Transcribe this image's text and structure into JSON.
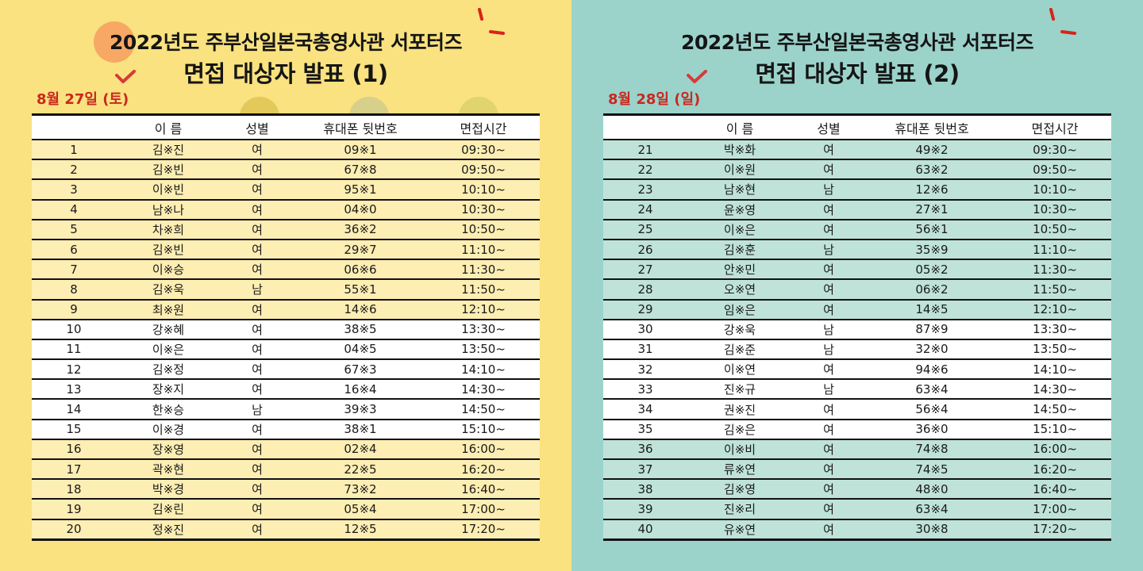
{
  "colors": {
    "left_bg": "#f9e27f",
    "right_bg": "#9bd3cb",
    "accent_red": "#c8281f"
  },
  "panels": [
    {
      "title_line1": "2022년도 주부산일본국총영사관 서포터즈",
      "title_line2": "면접 대상자 발표 (1)",
      "date": "8월 27일 (토)",
      "headers": [
        "",
        "이 름",
        "성별",
        "휴대폰 뒷번호",
        "면접시간"
      ],
      "rows": [
        [
          "1",
          "김※진",
          "여",
          "09※1",
          "09:30~"
        ],
        [
          "2",
          "김※빈",
          "여",
          "67※8",
          "09:50~"
        ],
        [
          "3",
          "이※빈",
          "여",
          "95※1",
          "10:10~"
        ],
        [
          "4",
          "남※나",
          "여",
          "04※0",
          "10:30~"
        ],
        [
          "5",
          "차※희",
          "여",
          "36※2",
          "10:50~"
        ],
        [
          "6",
          "김※빈",
          "여",
          "29※7",
          "11:10~"
        ],
        [
          "7",
          "이※승",
          "여",
          "06※6",
          "11:30~"
        ],
        [
          "8",
          "김※욱",
          "남",
          "55※1",
          "11:50~"
        ],
        [
          "9",
          "최※원",
          "여",
          "14※6",
          "12:10~"
        ],
        [
          "10",
          "강※혜",
          "여",
          "38※5",
          "13:30~"
        ],
        [
          "11",
          "이※은",
          "여",
          "04※5",
          "13:50~"
        ],
        [
          "12",
          "김※정",
          "여",
          "67※3",
          "14:10~"
        ],
        [
          "13",
          "장※지",
          "여",
          "16※4",
          "14:30~"
        ],
        [
          "14",
          "한※승",
          "남",
          "39※3",
          "14:50~"
        ],
        [
          "15",
          "이※경",
          "여",
          "38※1",
          "15:10~"
        ],
        [
          "16",
          "장※영",
          "여",
          "02※4",
          "16:00~"
        ],
        [
          "17",
          "곽※현",
          "여",
          "22※5",
          "16:20~"
        ],
        [
          "18",
          "박※경",
          "여",
          "73※2",
          "16:40~"
        ],
        [
          "19",
          "김※린",
          "여",
          "05※4",
          "17:00~"
        ],
        [
          "20",
          "정※진",
          "여",
          "12※5",
          "17:20~"
        ]
      ]
    },
    {
      "title_line1": "2022년도 주부산일본국총영사관 서포터즈",
      "title_line2": "면접 대상자 발표 (2)",
      "date": "8월 28일 (일)",
      "headers": [
        "",
        "이 름",
        "성별",
        "휴대폰 뒷번호",
        "면접시간"
      ],
      "rows": [
        [
          "21",
          "박※화",
          "여",
          "49※2",
          "09:30~"
        ],
        [
          "22",
          "이※원",
          "여",
          "63※2",
          "09:50~"
        ],
        [
          "23",
          "남※현",
          "남",
          "12※6",
          "10:10~"
        ],
        [
          "24",
          "윤※영",
          "여",
          "27※1",
          "10:30~"
        ],
        [
          "25",
          "이※은",
          "여",
          "56※1",
          "10:50~"
        ],
        [
          "26",
          "김※훈",
          "남",
          "35※9",
          "11:10~"
        ],
        [
          "27",
          "안※민",
          "여",
          "05※2",
          "11:30~"
        ],
        [
          "28",
          "오※연",
          "여",
          "06※2",
          "11:50~"
        ],
        [
          "29",
          "임※은",
          "여",
          "14※5",
          "12:10~"
        ],
        [
          "30",
          "강※욱",
          "남",
          "87※9",
          "13:30~"
        ],
        [
          "31",
          "김※준",
          "남",
          "32※0",
          "13:50~"
        ],
        [
          "32",
          "이※연",
          "여",
          "94※6",
          "14:10~"
        ],
        [
          "33",
          "진※규",
          "남",
          "63※4",
          "14:30~"
        ],
        [
          "34",
          "권※진",
          "여",
          "56※4",
          "14:50~"
        ],
        [
          "35",
          "김※은",
          "여",
          "36※0",
          "15:10~"
        ],
        [
          "36",
          "이※비",
          "여",
          "74※8",
          "16:00~"
        ],
        [
          "37",
          "류※연",
          "여",
          "74※5",
          "16:20~"
        ],
        [
          "38",
          "김※영",
          "여",
          "48※0",
          "16:40~"
        ],
        [
          "39",
          "진※리",
          "여",
          "63※4",
          "17:00~"
        ],
        [
          "40",
          "유※연",
          "여",
          "30※8",
          "17:20~"
        ]
      ]
    }
  ]
}
